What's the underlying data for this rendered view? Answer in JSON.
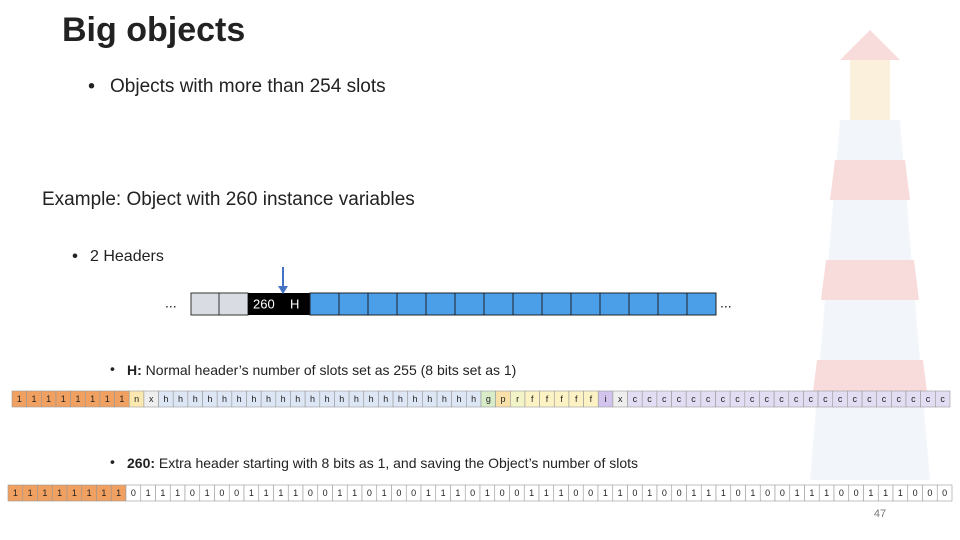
{
  "title": "Big objects",
  "bullet": "Objects with more than 254 slots",
  "example": "Example: Object with 260 instance variables",
  "sub_bullet": "2 Headers",
  "memory": {
    "left_dots": "...",
    "right_dots": "...",
    "extra_header": "260",
    "header": "H"
  },
  "note_h": {
    "bold": "H:",
    "text": "Normal header’s number of slots set as 255 (8 bits set as 1)"
  },
  "note_260": {
    "bold": "260:",
    "text": "Extra header starting with 8 bits as 1, and saving the Object’s number of slots"
  },
  "header_bits": {
    "ones": [
      "1",
      "1",
      "1",
      "1",
      "1",
      "1",
      "1",
      "1"
    ],
    "rest": [
      "n",
      "x",
      "h",
      "h",
      "h",
      "h",
      "h",
      "h",
      "h",
      "h",
      "h",
      "h",
      "h",
      "h",
      "h",
      "h",
      "h",
      "h",
      "h",
      "h",
      "h",
      "h",
      "h",
      "h",
      "g",
      "p",
      "r",
      "f",
      "f",
      "f",
      "f",
      "f",
      "i",
      "x",
      "c",
      "c",
      "c",
      "c",
      "c",
      "c",
      "c",
      "c",
      "c",
      "c",
      "c",
      "c",
      "c",
      "c",
      "c",
      "c",
      "c",
      "c",
      "c",
      "c",
      "c",
      "c"
    ]
  },
  "extra_bits": {
    "ones": [
      "1",
      "1",
      "1",
      "1",
      "1",
      "1",
      "1",
      "1"
    ],
    "rest": [
      "0",
      "1",
      "1",
      "1",
      "0",
      "1",
      "0",
      "0",
      "1",
      "1",
      "1",
      "1",
      "0",
      "0",
      "1",
      "1",
      "0",
      "1",
      "0",
      "0",
      "1",
      "1",
      "1",
      "0",
      "1",
      "0",
      "0",
      "1",
      "1",
      "1",
      "0",
      "0",
      "1",
      "1",
      "0",
      "1",
      "0",
      "0",
      "1",
      "1",
      "1",
      "0",
      "1",
      "0",
      "0",
      "1",
      "1",
      "1",
      "0",
      "0",
      "1",
      "1",
      "1",
      "0",
      "0",
      "0"
    ]
  },
  "page_number": "47"
}
